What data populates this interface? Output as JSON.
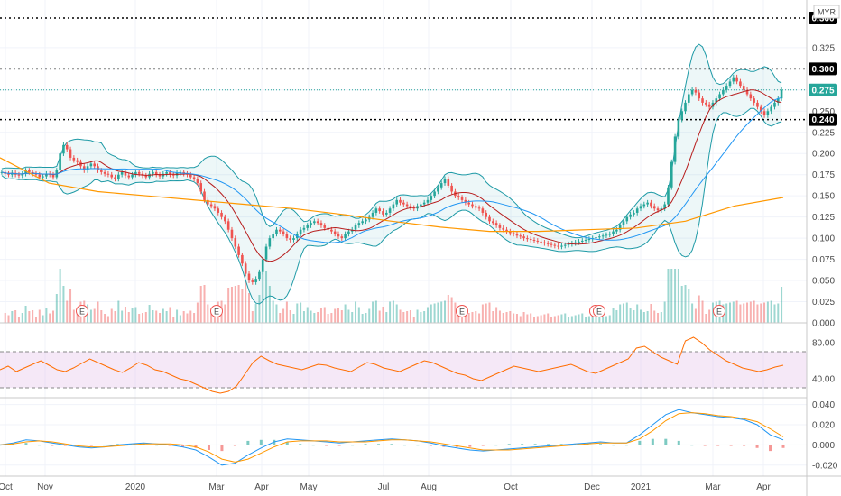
{
  "chart_data": [
    {
      "type": "candlestick",
      "currency": "MYR",
      "y_ticks": [
        "0.325",
        "0.300",
        "0.275",
        "0.250",
        "0.225",
        "0.200",
        "0.175",
        "0.150",
        "0.125",
        "0.100",
        "0.075",
        "0.050",
        "0.025",
        "0.000"
      ],
      "y_range": [
        0.0,
        0.36
      ],
      "price_labels": [
        {
          "value": 0.36,
          "text": "0.360",
          "style": "dark",
          "line": "dotted"
        },
        {
          "value": 0.3,
          "text": "0.300",
          "style": "dark",
          "line": "dotted"
        },
        {
          "value": 0.275,
          "text": "0.275",
          "style": "teal",
          "line": "last"
        },
        {
          "value": 0.24,
          "text": "0.240",
          "style": "dark",
          "line": "dotted"
        }
      ],
      "earnings_marker": "E",
      "earnings_months": [
        "Nov",
        "2020",
        "Aug",
        "Dec",
        "Dec",
        "Mar"
      ],
      "close": [
        0.178,
        0.176,
        0.175,
        0.177,
        0.175,
        0.174,
        0.176,
        0.18,
        0.178,
        0.176,
        0.175,
        0.172,
        0.173,
        0.176,
        0.175,
        0.172,
        0.18,
        0.2,
        0.21,
        0.205,
        0.195,
        0.192,
        0.19,
        0.185,
        0.18,
        0.185,
        0.188,
        0.185,
        0.18,
        0.178,
        0.176,
        0.175,
        0.172,
        0.17,
        0.175,
        0.178,
        0.174,
        0.172,
        0.175,
        0.178,
        0.176,
        0.174,
        0.172,
        0.176,
        0.178,
        0.175,
        0.173,
        0.176,
        0.178,
        0.175,
        0.174,
        0.177,
        0.178,
        0.176,
        0.175,
        0.172,
        0.17,
        0.165,
        0.155,
        0.145,
        0.14,
        0.138,
        0.135,
        0.13,
        0.125,
        0.12,
        0.11,
        0.1,
        0.09,
        0.08,
        0.07,
        0.058,
        0.05,
        0.048,
        0.052,
        0.06,
        0.075,
        0.09,
        0.1,
        0.105,
        0.11,
        0.108,
        0.105,
        0.1,
        0.098,
        0.1,
        0.105,
        0.11,
        0.112,
        0.115,
        0.118,
        0.12,
        0.118,
        0.115,
        0.112,
        0.11,
        0.108,
        0.105,
        0.102,
        0.1,
        0.105,
        0.108,
        0.11,
        0.115,
        0.118,
        0.12,
        0.122,
        0.125,
        0.13,
        0.135,
        0.132,
        0.128,
        0.13,
        0.135,
        0.14,
        0.145,
        0.142,
        0.14,
        0.138,
        0.136,
        0.135,
        0.138,
        0.14,
        0.142,
        0.145,
        0.15,
        0.155,
        0.16,
        0.165,
        0.17,
        0.162,
        0.155,
        0.15,
        0.148,
        0.145,
        0.142,
        0.14,
        0.138,
        0.136,
        0.135,
        0.13,
        0.125,
        0.12,
        0.118,
        0.115,
        0.112,
        0.11,
        0.108,
        0.106,
        0.105,
        0.103,
        0.102,
        0.1,
        0.099,
        0.098,
        0.097,
        0.096,
        0.095,
        0.094,
        0.093,
        0.092,
        0.091,
        0.09,
        0.091,
        0.092,
        0.093,
        0.094,
        0.095,
        0.096,
        0.097,
        0.098,
        0.099,
        0.1,
        0.101,
        0.102,
        0.103,
        0.104,
        0.105,
        0.108,
        0.11,
        0.115,
        0.12,
        0.125,
        0.128,
        0.13,
        0.135,
        0.138,
        0.14,
        0.142,
        0.138,
        0.135,
        0.133,
        0.135,
        0.14,
        0.16,
        0.19,
        0.22,
        0.24,
        0.25,
        0.26,
        0.27,
        0.275,
        0.272,
        0.265,
        0.26,
        0.258,
        0.255,
        0.26,
        0.265,
        0.27,
        0.275,
        0.28,
        0.285,
        0.29,
        0.285,
        0.28,
        0.275,
        0.27,
        0.265,
        0.26,
        0.255,
        0.25,
        0.245,
        0.25,
        0.255,
        0.26,
        0.265,
        0.275
      ],
      "ma_slow": [
        0.195,
        0.165,
        0.155,
        0.15,
        0.145,
        0.14,
        0.135,
        0.128,
        0.12,
        0.113,
        0.108,
        0.108,
        0.11,
        0.112,
        0.12,
        0.138,
        0.148
      ],
      "rsi": {
        "ticks": [
          "80.00",
          "40.00"
        ],
        "y_range": [
          20,
          100
        ],
        "band": [
          70,
          30
        ],
        "values": [
          50,
          54,
          48,
          52,
          56,
          60,
          55,
          50,
          48,
          52,
          57,
          62,
          58,
          54,
          50,
          47,
          52,
          58,
          55,
          50,
          48,
          44,
          40,
          38,
          34,
          30,
          26,
          24,
          26,
          32,
          45,
          58,
          65,
          60,
          56,
          54,
          52,
          50,
          53,
          56,
          55,
          52,
          50,
          48,
          53,
          58,
          56,
          52,
          50,
          48,
          52,
          56,
          60,
          58,
          54,
          50,
          46,
          44,
          40,
          38,
          42,
          46,
          50,
          54,
          52,
          50,
          48,
          50,
          52,
          54,
          56,
          52,
          48,
          46,
          50,
          54,
          58,
          62,
          74,
          76,
          70,
          64,
          60,
          56,
          82,
          86,
          80,
          72,
          66,
          60,
          56,
          52,
          50,
          48,
          50,
          53,
          55
        ]
      },
      "macd": {
        "ticks": [
          "0.040",
          "0.020",
          "0.000",
          "-0.020"
        ],
        "y_range": [
          -0.03,
          0.045
        ],
        "macd": [
          0.0,
          0.002,
          0.005,
          0.004,
          0.002,
          0.0,
          -0.002,
          -0.003,
          -0.002,
          0.0,
          0.001,
          0.002,
          0.001,
          0.0,
          -0.002,
          -0.005,
          -0.012,
          -0.02,
          -0.018,
          -0.01,
          -0.003,
          0.003,
          0.006,
          0.005,
          0.004,
          0.003,
          0.002,
          0.003,
          0.004,
          0.005,
          0.006,
          0.005,
          0.004,
          0.002,
          -0.001,
          -0.003,
          -0.005,
          -0.006,
          -0.005,
          -0.004,
          -0.003,
          -0.002,
          -0.001,
          0.0,
          0.001,
          0.002,
          0.003,
          0.002,
          0.002,
          0.01,
          0.02,
          0.03,
          0.035,
          0.032,
          0.03,
          0.028,
          0.027,
          0.025,
          0.02,
          0.01,
          0.005
        ],
        "signal": [
          0.0,
          0.001,
          0.003,
          0.004,
          0.003,
          0.001,
          -0.001,
          -0.002,
          -0.002,
          -0.001,
          0.0,
          0.001,
          0.001,
          0.001,
          0.0,
          -0.002,
          -0.007,
          -0.014,
          -0.017,
          -0.014,
          -0.008,
          -0.002,
          0.003,
          0.004,
          0.004,
          0.004,
          0.003,
          0.003,
          0.003,
          0.004,
          0.005,
          0.005,
          0.004,
          0.003,
          0.001,
          -0.001,
          -0.003,
          -0.005,
          -0.005,
          -0.005,
          -0.004,
          -0.003,
          -0.002,
          -0.001,
          0.0,
          0.001,
          0.002,
          0.002,
          0.002,
          0.006,
          0.014,
          0.024,
          0.031,
          0.032,
          0.031,
          0.029,
          0.028,
          0.026,
          0.023,
          0.016,
          0.008
        ]
      }
    }
  ],
  "x_axis": {
    "ticks": [
      "Oct",
      "Nov",
      "2020",
      "Mar",
      "Apr",
      "May",
      "Jul",
      "Aug",
      "Oct",
      "Dec",
      "2021",
      "Mar",
      "Apr"
    ]
  },
  "colors": {
    "up": "#26a69a",
    "down": "#ef5350",
    "bb": "#1e9aa6",
    "ma_fast": "#b71c1c",
    "ma_mid": "#2196f3",
    "ma_slow": "#ff9800",
    "rsi": "#ff6d00",
    "rsi_band": "#e1bee7",
    "macd": "#2196f3",
    "signal": "#ff9800",
    "label_dark": "#000000",
    "label_teal": "#26a69a"
  }
}
